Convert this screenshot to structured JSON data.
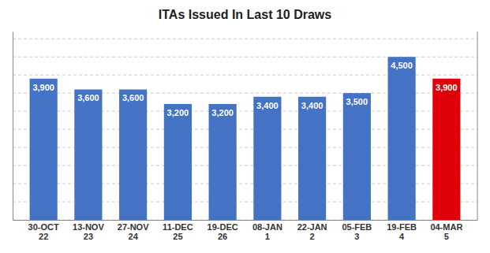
{
  "chart_data": {
    "type": "bar",
    "title": "ITAs Issued In Last 10 Draws",
    "categories": [
      "30-OCT\n22",
      "13-NOV\n23",
      "27-NOV\n24",
      "11-DEC\n25",
      "19-DEC\n26",
      "08-JAN\n1",
      "22-JAN\n2",
      "05-FEB\n3",
      "19-FEB\n4",
      "04-MAR\n5"
    ],
    "values": [
      3900,
      3600,
      3600,
      3200,
      3200,
      3400,
      3400,
      3500,
      4500,
      3900
    ],
    "value_labels": [
      "3,900",
      "3,600",
      "3,600",
      "3,200",
      "3,200",
      "3,400",
      "3,400",
      "3,500",
      "4,500",
      "3,900"
    ],
    "colors": [
      "#4472C4",
      "#4472C4",
      "#4472C4",
      "#4472C4",
      "#4472C4",
      "#4472C4",
      "#4472C4",
      "#4472C4",
      "#4472C4",
      "#E0000A"
    ],
    "ylim": [
      0,
      5200
    ],
    "yticks": [
      0,
      500,
      1000,
      1500,
      2000,
      2500,
      3000,
      3500,
      4000,
      4500,
      5000
    ],
    "grid": true,
    "data_labels": true,
    "tick_labels": "x"
  }
}
